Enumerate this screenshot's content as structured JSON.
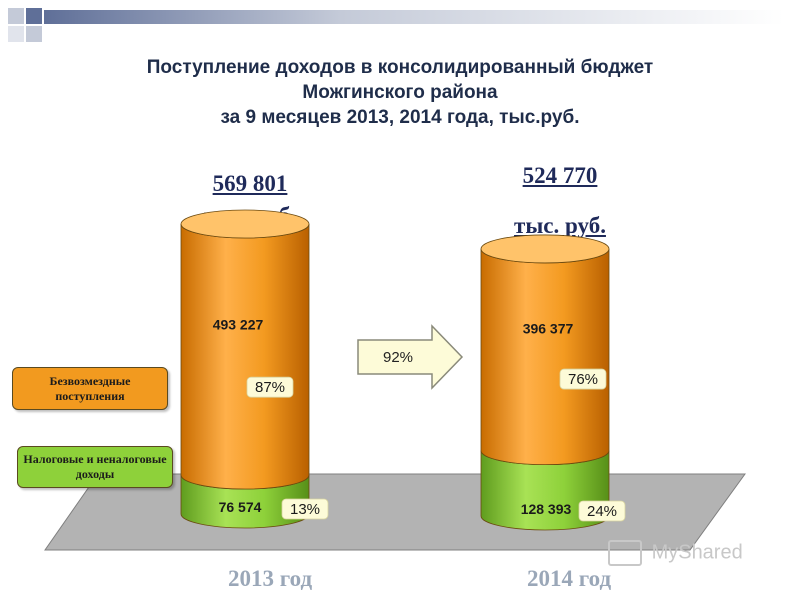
{
  "header": {
    "title_lines": [
      "Поступление доходов в консолидированный бюджет",
      "Можгинского района",
      "за 9 месяцев 2013, 2014 года, тыс.руб."
    ]
  },
  "totals": [
    {
      "value": "569 801",
      "unit": "тыс. руб."
    },
    {
      "value": "524 770",
      "unit": "тыс. руб."
    }
  ],
  "arrow": {
    "label": "92%"
  },
  "legend": {
    "gratuitous": "Безвозмездные поступления",
    "tax": "Налоговые и неналоговые доходы"
  },
  "years": [
    "2013 год",
    "2014 год"
  ],
  "watermark": "MyShared",
  "colors": {
    "gratuitous": "#f29a1f",
    "tax": "#8ed13a",
    "floor": "#b3b3b3",
    "title": "#1f2d4a"
  },
  "chart_data": {
    "type": "bar",
    "categories": [
      "2013 год",
      "2014 год"
    ],
    "series": [
      {
        "name": "Налоговые и неналоговые доходы",
        "values": [
          76574,
          128393
        ],
        "value_labels": [
          "76 574",
          "128 393"
        ],
        "percent_labels": [
          "13%",
          "24%"
        ]
      },
      {
        "name": "Безвозмездные поступления",
        "values": [
          493227,
          396377
        ],
        "value_labels": [
          "493 227",
          "396 377"
        ],
        "percent_labels": [
          "87%",
          "76%"
        ]
      }
    ],
    "totals": [
      569801,
      524770
    ],
    "stacked": true,
    "title": "Поступление доходов в консолидированный бюджет Можгинского района за 9 месяцев 2013, 2014 года, тыс.руб."
  }
}
